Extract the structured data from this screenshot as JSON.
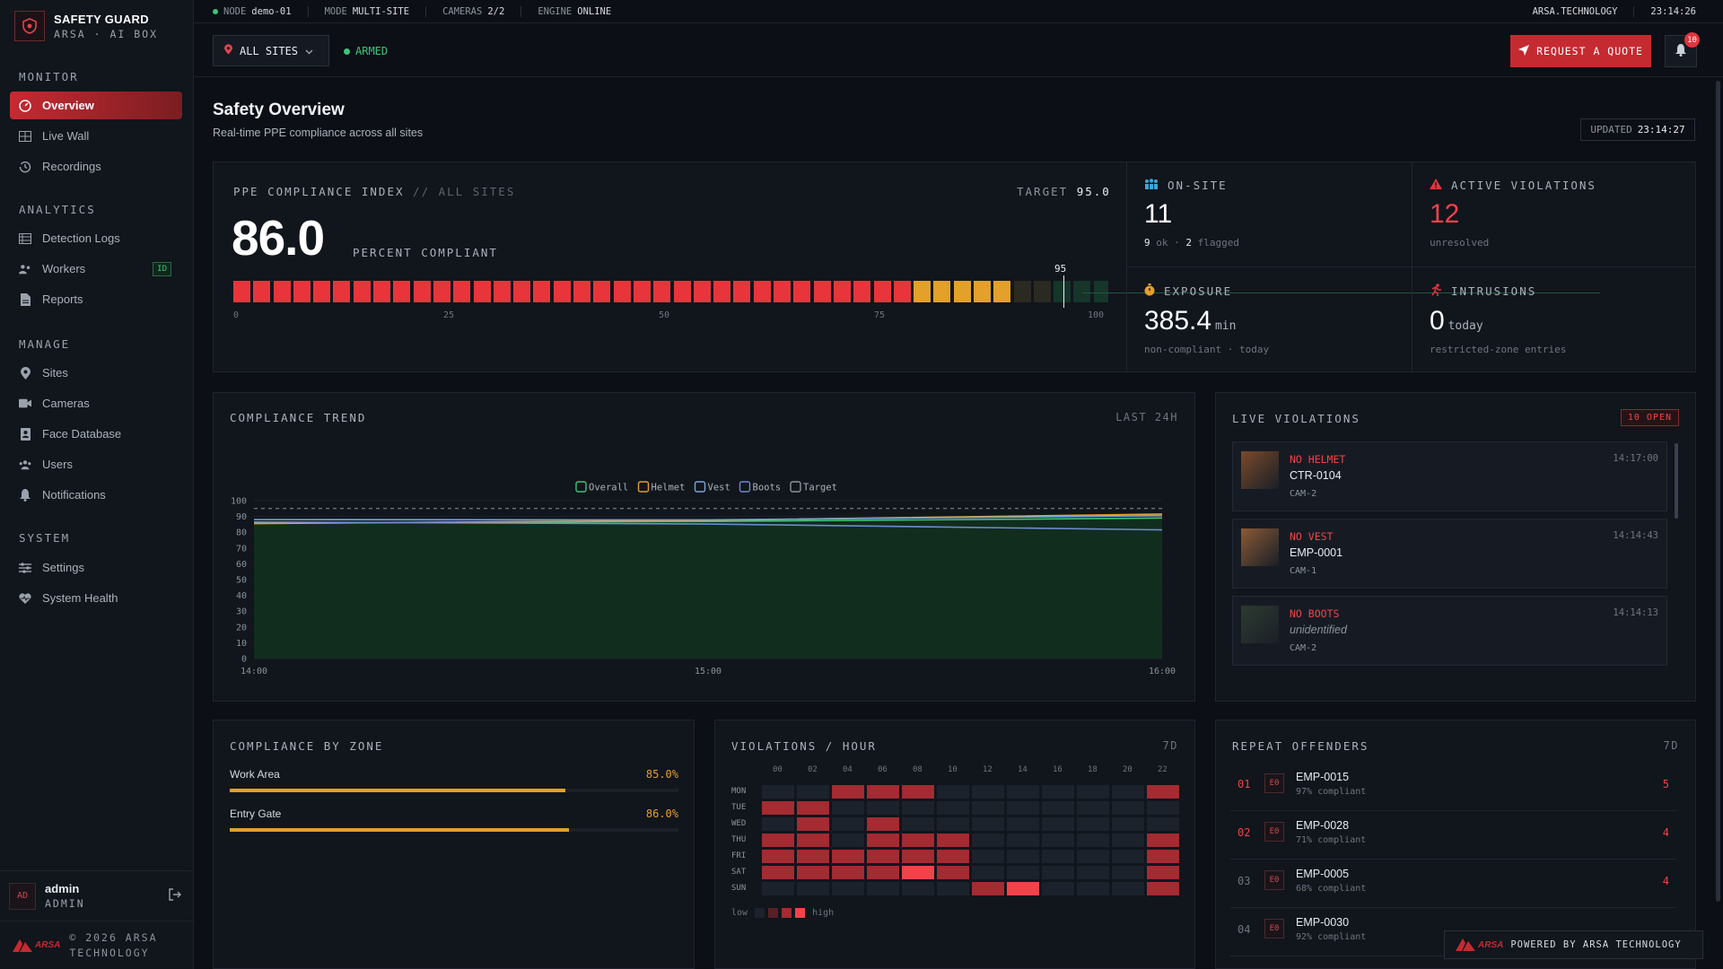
{
  "brand": {
    "title": "SAFETY GUARD",
    "subtitle": "ARSA · AI BOX"
  },
  "sidebar": {
    "sections": [
      {
        "label": "MONITOR",
        "items": [
          {
            "label": "Overview",
            "icon": "gauge-icon",
            "active": true
          },
          {
            "label": "Live Wall",
            "icon": "grid-icon"
          },
          {
            "label": "Recordings",
            "icon": "history-icon"
          }
        ]
      },
      {
        "label": "ANALYTICS",
        "items": [
          {
            "label": "Detection Logs",
            "icon": "table-icon"
          },
          {
            "label": "Workers",
            "icon": "users-icon",
            "badge": "ID"
          },
          {
            "label": "Reports",
            "icon": "file-icon"
          }
        ]
      },
      {
        "label": "MANAGE",
        "items": [
          {
            "label": "Sites",
            "icon": "pin-icon"
          },
          {
            "label": "Cameras",
            "icon": "camera-icon"
          },
          {
            "label": "Face Database",
            "icon": "id-card-icon"
          },
          {
            "label": "Users",
            "icon": "user-group-icon"
          },
          {
            "label": "Notifications",
            "icon": "bell-icon"
          }
        ]
      },
      {
        "label": "SYSTEM",
        "items": [
          {
            "label": "Settings",
            "icon": "sliders-icon"
          },
          {
            "label": "System Health",
            "icon": "heart-pulse-icon"
          }
        ]
      }
    ],
    "user": {
      "initials": "AD",
      "name": "admin",
      "role": "ADMIN"
    },
    "footer": {
      "logo_text": "ARSA",
      "line1": "© 2026 ARSA",
      "line2": "TECHNOLOGY"
    }
  },
  "topbar": {
    "node_label": "NODE",
    "node_value": "demo-01",
    "mode_label": "MODE",
    "mode_value": "MULTI-SITE",
    "cameras_label": "CAMERAS",
    "cameras_value": "2/2",
    "engine_label": "ENGINE",
    "engine_value": "ONLINE",
    "org": "ARSA.TECHNOLOGY",
    "clock": "23:14:26"
  },
  "header": {
    "site_select": "ALL SITES",
    "armed": "ARMED",
    "quote_button": "REQUEST A QUOTE",
    "notif_count": "10"
  },
  "page": {
    "title": "Safety Overview",
    "subtitle": "Real-time PPE compliance across all sites",
    "updated_label": "UPDATED",
    "updated_time": "23:14:27"
  },
  "compliance_index": {
    "title": "PPE COMPLIANCE INDEX",
    "scope": "// ALL SITES",
    "target_label": "TARGET",
    "target_value": "95.0",
    "value": "86.0",
    "unit": "PERCENT COMPLIANT",
    "marker_label": "95",
    "bar_value": 86.0,
    "bar_target": 95,
    "scale": [
      "0",
      "25",
      "50",
      "75",
      "100"
    ]
  },
  "stats": {
    "onsite": {
      "label": "ON-SITE",
      "value": "11",
      "ok": "9",
      "ok_text": "ok",
      "flagged": "2",
      "flagged_text": "flagged"
    },
    "violations": {
      "label": "ACTIVE VIOLATIONS",
      "value": "12",
      "sub": "unresolved"
    },
    "exposure": {
      "label": "EXPOSURE",
      "value": "385.4",
      "unit": "min",
      "sub": "non-compliant · today"
    },
    "intrusions": {
      "label": "INTRUSIONS",
      "value": "0",
      "unit": "today",
      "sub": "restricted-zone entries"
    }
  },
  "trend": {
    "title": "COMPLIANCE TREND",
    "range": "LAST 24H"
  },
  "chart_data": {
    "type": "line",
    "x": [
      "14:00",
      "15:00",
      "16:00"
    ],
    "series": [
      {
        "name": "Overall",
        "values": [
          86.0,
          86.8,
          89.0
        ],
        "color": "#3ec47a"
      },
      {
        "name": "Helmet",
        "values": [
          85.5,
          87.5,
          91.5
        ],
        "color": "#e3a02a"
      },
      {
        "name": "Vest",
        "values": [
          88.0,
          87.8,
          90.5
        ],
        "color": "#7aa7d6"
      },
      {
        "name": "Boots",
        "values": [
          86.5,
          85.2,
          81.5
        ],
        "color": "#6e8bd0"
      },
      {
        "name": "Target",
        "values": [
          95,
          95,
          95
        ],
        "color": "#8b949e"
      }
    ],
    "ylim": [
      0,
      100
    ],
    "yticks": [
      "100",
      "90",
      "80",
      "70",
      "60",
      "50",
      "40",
      "30",
      "20",
      "10",
      "0"
    ],
    "grid": true,
    "legend": "top-center"
  },
  "live_violations": {
    "title": "LIVE VIOLATIONS",
    "open_badge": "10 OPEN",
    "items": [
      {
        "type": "NO HELMET",
        "person": "CTR-0104",
        "cam": "CAM-2",
        "time": "14:17:00"
      },
      {
        "type": "NO VEST",
        "person": "EMP-0001",
        "cam": "CAM-1",
        "time": "14:14:43"
      },
      {
        "type": "NO BOOTS",
        "person": "unidentified",
        "cam": "CAM-2",
        "time": "14:14:13"
      }
    ]
  },
  "zones": {
    "title": "COMPLIANCE BY ZONE",
    "items": [
      {
        "name": "Work Area",
        "value": "85.0%",
        "pct": 85.0
      },
      {
        "name": "Entry Gate",
        "value": "86.0%",
        "pct": 86.0
      }
    ]
  },
  "heatmap": {
    "title": "VIOLATIONS / HOUR",
    "range": "7D",
    "hours": [
      "00",
      "02",
      "04",
      "06",
      "08",
      "10",
      "12",
      "14",
      "16",
      "18",
      "20",
      "22"
    ],
    "days": [
      "MON",
      "TUE",
      "WED",
      "THU",
      "FRI",
      "SAT",
      "SUN"
    ],
    "levels": [
      [
        0,
        0,
        2,
        2,
        2,
        0,
        0,
        0,
        0,
        0,
        0,
        2
      ],
      [
        2,
        2,
        0,
        0,
        0,
        0,
        0,
        0,
        0,
        0,
        0,
        0
      ],
      [
        0,
        2,
        0,
        2,
        0,
        0,
        0,
        0,
        0,
        0,
        0,
        0
      ],
      [
        2,
        2,
        0,
        2,
        2,
        2,
        0,
        0,
        0,
        0,
        0,
        2
      ],
      [
        2,
        2,
        2,
        2,
        2,
        2,
        0,
        0,
        0,
        0,
        0,
        2
      ],
      [
        2,
        2,
        2,
        2,
        3,
        2,
        0,
        0,
        0,
        0,
        0,
        2
      ],
      [
        0,
        0,
        0,
        0,
        0,
        0,
        2,
        3,
        0,
        0,
        0,
        2
      ]
    ],
    "legend_low": "low",
    "legend_high": "high"
  },
  "offenders": {
    "title": "REPEAT OFFENDERS",
    "range": "7D",
    "items": [
      {
        "rank": "01",
        "badge": "E0",
        "id": "EMP-0015",
        "sub": "97% compliant",
        "count": "5"
      },
      {
        "rank": "02",
        "badge": "E0",
        "id": "EMP-0028",
        "sub": "71% compliant",
        "count": "4"
      },
      {
        "rank": "03",
        "badge": "E0",
        "id": "EMP-0005",
        "sub": "68% compliant",
        "count": "4"
      },
      {
        "rank": "04",
        "badge": "E0",
        "id": "EMP-0030",
        "sub": "92% compliant",
        "count": ""
      }
    ]
  },
  "powered": {
    "logo_text": "ARSA",
    "text": "POWERED BY ARSA TECHNOLOGY"
  },
  "colors": {
    "accent": "#c62a31",
    "red": "#f2434a",
    "amber": "#e3a02a",
    "green": "#3ec47a"
  }
}
